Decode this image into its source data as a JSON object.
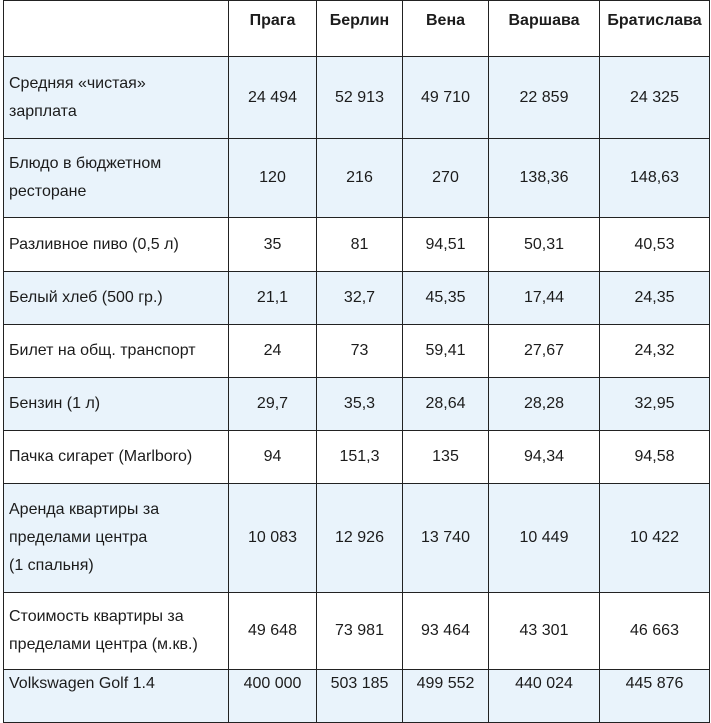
{
  "table": {
    "columns": [
      "",
      "Прага",
      "Берлин",
      "Вена",
      "Варшава",
      "Братислава"
    ],
    "rows": [
      {
        "label": "Средняя «чистая»\nзарплата",
        "values": [
          "24 494",
          "52 913",
          "49 710",
          "22 859",
          "24 325"
        ]
      },
      {
        "label": "Блюдо в бюджетном\nресторане",
        "values": [
          "120",
          "216",
          "270",
          "138,36",
          "148,63"
        ]
      },
      {
        "label": "Разливное пиво (0,5 л)",
        "values": [
          "35",
          "81",
          "94,51",
          "50,31",
          "40,53"
        ]
      },
      {
        "label": "Белый хлеб (500 гр.)",
        "values": [
          "21,1",
          "32,7",
          "45,35",
          "17,44",
          "24,35"
        ]
      },
      {
        "label": "Билет на общ. транспорт",
        "values": [
          "24",
          "73",
          "59,41",
          "27,67",
          "24,32"
        ]
      },
      {
        "label": "Бензин (1 л)",
        "values": [
          "29,7",
          "35,3",
          "28,64",
          "28,28",
          "32,95"
        ]
      },
      {
        "label": "Пачка сигарет (Marlboro)",
        "values": [
          "94",
          "151,3",
          "135",
          "94,34",
          "94,58"
        ]
      },
      {
        "label": "Аренда квартиры за\nпределами центра\n(1 спальня)",
        "values": [
          "10 083",
          "12 926",
          "13 740",
          "10 449",
          "10 422"
        ]
      },
      {
        "label": "Стоимость квартиры за\nпределами центра (м.кв.)",
        "values": [
          "49 648",
          "73 981",
          "93 464",
          "43 301",
          "46 663"
        ]
      },
      {
        "label": "Volkswagen Golf 1.4",
        "values": [
          "400 000",
          "503 185",
          "499 552",
          "440 024",
          "445 876"
        ]
      }
    ]
  },
  "colors": {
    "shaded_row": "#e9f3fb",
    "border": "#222222",
    "text": "#1c1c1c"
  }
}
